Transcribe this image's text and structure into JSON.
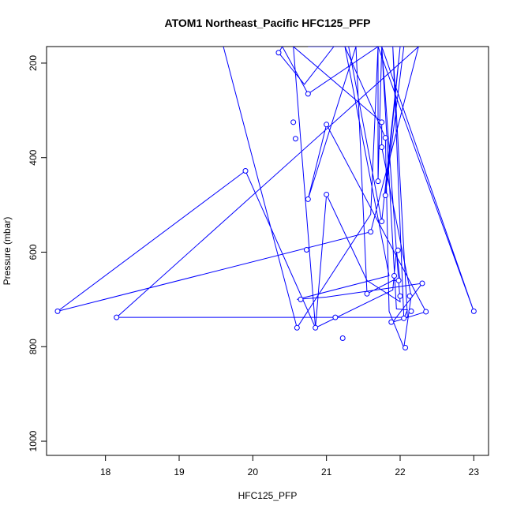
{
  "chart_data": {
    "type": "line",
    "title": "ATOM1 Northeast_Pacific HFC125_PFP",
    "xlabel": "HFC125_PFP",
    "ylabel": "Pressure (mbar)",
    "xlim": [
      17.2,
      23.2
    ],
    "ylim": [
      1030,
      165
    ],
    "y_reversed": true,
    "x_ticks": [
      18,
      19,
      20,
      21,
      22,
      23
    ],
    "y_ticks": [
      200,
      400,
      600,
      800,
      1000
    ],
    "x_tick_labels": [
      "18",
      "19",
      "20",
      "21",
      "22",
      "23"
    ],
    "y_tick_labels": [
      "200",
      "400",
      "600",
      "800",
      "1000"
    ],
    "grid": false,
    "legend": "none",
    "color": "#0000ff",
    "marker": "open-circle",
    "series": [
      {
        "x": [
          19.6,
          20.6,
          21.6,
          21.7,
          20.75,
          20.4,
          20.35,
          20.7,
          21.1,
          21.25,
          21.85,
          20.6,
          21.0,
          22.3,
          21.9,
          22.35,
          21.0,
          20.75,
          21.4,
          21.55,
          21.9,
          22.0,
          21.95,
          21.9,
          20.85,
          20.55,
          21.75,
          21.75,
          22.15,
          22.05,
          21.85,
          21.8,
          21.25,
          21.75,
          22.0,
          21.55,
          21.0,
          20.85,
          19.9,
          17.35,
          21.6,
          22.25,
          18.15,
          22.1,
          21.9,
          22.05,
          22.1,
          21.95,
          21.75,
          21.7,
          23.0,
          21.75,
          21.7,
          21.7,
          21.2,
          22.05,
          21.8,
          22.0,
          21.75,
          21.3,
          20.9,
          20.75,
          21.2,
          21.7,
          21.85,
          21.7
        ],
        "y": [
          165,
          760,
          520,
          165,
          265,
          165,
          178,
          245,
          165,
          165,
          650,
          700,
          695,
          666,
          748,
          726,
          330,
          488,
          165,
          688,
          660,
          660,
          596,
          680,
          760,
          165,
          325,
          378,
          693,
          802,
          725,
          358,
          165,
          165,
          705,
          660,
          478,
          760,
          428,
          725,
          557,
          165,
          738,
          738,
          165,
          740,
          722,
          720,
          165,
          165,
          725,
          165,
          450,
          165,
          165,
          165,
          480,
          165,
          535,
          165,
          165,
          165,
          165,
          165,
          165,
          165
        ]
      }
    ],
    "points": [
      {
        "x": 20.35,
        "y": 178
      },
      {
        "x": 20.75,
        "y": 265
      },
      {
        "x": 20.55,
        "y": 325
      },
      {
        "x": 21.0,
        "y": 330
      },
      {
        "x": 21.75,
        "y": 325
      },
      {
        "x": 20.58,
        "y": 360
      },
      {
        "x": 21.8,
        "y": 358
      },
      {
        "x": 21.75,
        "y": 378
      },
      {
        "x": 19.9,
        "y": 428
      },
      {
        "x": 21.7,
        "y": 450
      },
      {
        "x": 21.0,
        "y": 478
      },
      {
        "x": 21.8,
        "y": 480
      },
      {
        "x": 20.75,
        "y": 488
      },
      {
        "x": 21.75,
        "y": 535
      },
      {
        "x": 21.6,
        "y": 557
      },
      {
        "x": 21.97,
        "y": 596
      },
      {
        "x": 20.73,
        "y": 595
      },
      {
        "x": 21.92,
        "y": 650
      },
      {
        "x": 21.98,
        "y": 660
      },
      {
        "x": 22.3,
        "y": 666
      },
      {
        "x": 21.55,
        "y": 688
      },
      {
        "x": 22.0,
        "y": 693
      },
      {
        "x": 22.13,
        "y": 693
      },
      {
        "x": 20.65,
        "y": 700
      },
      {
        "x": 17.35,
        "y": 725
      },
      {
        "x": 22.15,
        "y": 725
      },
      {
        "x": 22.35,
        "y": 726
      },
      {
        "x": 23.0,
        "y": 725
      },
      {
        "x": 18.15,
        "y": 738
      },
      {
        "x": 21.12,
        "y": 738
      },
      {
        "x": 22.05,
        "y": 740
      },
      {
        "x": 21.88,
        "y": 748
      },
      {
        "x": 20.6,
        "y": 760
      },
      {
        "x": 20.85,
        "y": 760
      },
      {
        "x": 21.22,
        "y": 782
      },
      {
        "x": 22.07,
        "y": 802
      }
    ]
  }
}
